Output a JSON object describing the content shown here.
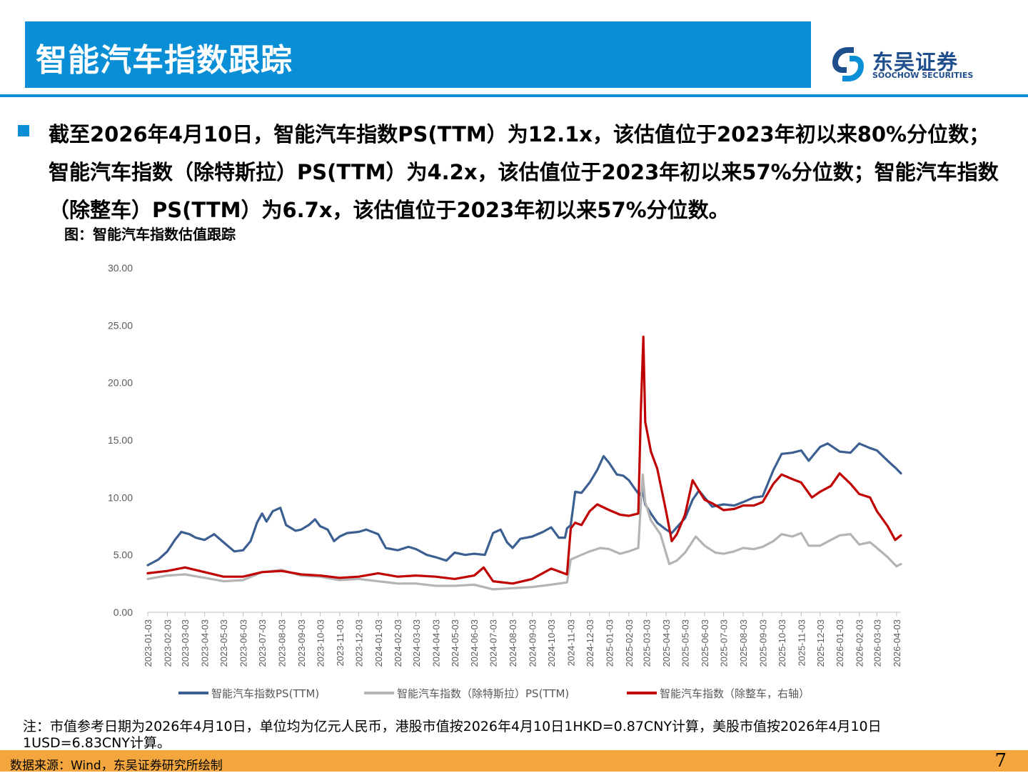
{
  "header": {
    "title": "智能汽车指数跟踪"
  },
  "logo": {
    "name": "东吴证券",
    "english": "SOOCHOW SECURITIES"
  },
  "bullet": {
    "text": "截至2026年4月10日，智能汽车指数PS(TTM）为12.1x，该估值位于2023年初以来80%分位数；智能汽车指数（除特斯拉）PS(TTM）为4.2x，该估值位于2023年初以来57%分位数；智能汽车指数（除整车）PS(TTM）为6.7x，该估值位于2023年初以来57%分位数。"
  },
  "figure": {
    "title": "图：智能汽车指数估值跟踪"
  },
  "footnote": "注：市值参考日期为2026年4月10日，单位均为亿元人民币，港股市值按2026年4月10日1HKD=0.87CNY计算，美股市值按2026年4月10日1USD=6.83CNY计算。",
  "source": "数据来源：Wind，东吴证券研究所绘制",
  "page_number": "7",
  "colors": {
    "accent": "#0a8fd6",
    "footer": "#f2a63d",
    "series1": "#3b5f91",
    "series2": "#b4b4b4",
    "series3": "#c00000"
  },
  "chart_data": {
    "type": "line",
    "title": "",
    "xlabel": "",
    "ylabel": "",
    "ylim": [
      0,
      30
    ],
    "yticks": [
      "0.00",
      "5.00",
      "10.00",
      "15.00",
      "20.00",
      "25.00",
      "30.00"
    ],
    "x_ticks": [
      "2023-01-03",
      "2023-02-03",
      "2023-03-03",
      "2023-04-03",
      "2023-05-03",
      "2023-06-03",
      "2023-07-03",
      "2023-08-03",
      "2023-09-03",
      "2023-10-03",
      "2023-11-03",
      "2023-12-03",
      "2024-01-03",
      "2024-02-03",
      "2024-03-03",
      "2024-04-03",
      "2024-05-03",
      "2024-06-03",
      "2024-07-03",
      "2024-08-03",
      "2024-09-03",
      "2024-10-03",
      "2024-11-03",
      "2024-12-03",
      "2025-01-03",
      "2025-02-03",
      "2025-03-03",
      "2025-04-03",
      "2025-05-03",
      "2025-06-03",
      "2025-07-03",
      "2025-08-03",
      "2025-09-03",
      "2025-10-03",
      "2025-11-03",
      "2025-12-03",
      "2026-01-03",
      "2026-02-03",
      "2026-03-03",
      "2026-04-03"
    ],
    "legend_position": "bottom",
    "series": [
      {
        "name": "智能汽车指数PS(TTM)",
        "color": "#3b5f91",
        "points": [
          [
            "2023-01-03",
            4.1
          ],
          [
            "2023-01-20",
            4.6
          ],
          [
            "2023-02-03",
            5.3
          ],
          [
            "2023-02-15",
            6.3
          ],
          [
            "2023-02-25",
            7.0
          ],
          [
            "2023-03-10",
            6.8
          ],
          [
            "2023-03-20",
            6.5
          ],
          [
            "2023-04-03",
            6.3
          ],
          [
            "2023-04-18",
            6.8
          ],
          [
            "2023-05-03",
            6.1
          ],
          [
            "2023-05-20",
            5.3
          ],
          [
            "2023-06-03",
            5.4
          ],
          [
            "2023-06-15",
            6.2
          ],
          [
            "2023-06-25",
            7.8
          ],
          [
            "2023-07-03",
            8.6
          ],
          [
            "2023-07-10",
            7.9
          ],
          [
            "2023-07-20",
            8.8
          ],
          [
            "2023-08-01",
            9.1
          ],
          [
            "2023-08-10",
            7.6
          ],
          [
            "2023-08-25",
            7.1
          ],
          [
            "2023-09-03",
            7.2
          ],
          [
            "2023-09-15",
            7.6
          ],
          [
            "2023-09-25",
            8.1
          ],
          [
            "2023-10-03",
            7.5
          ],
          [
            "2023-10-15",
            7.2
          ],
          [
            "2023-10-25",
            6.2
          ],
          [
            "2023-11-03",
            6.6
          ],
          [
            "2023-11-15",
            6.9
          ],
          [
            "2023-12-03",
            7.0
          ],
          [
            "2023-12-15",
            7.2
          ],
          [
            "2024-01-03",
            6.8
          ],
          [
            "2024-01-15",
            5.6
          ],
          [
            "2024-02-03",
            5.4
          ],
          [
            "2024-02-20",
            5.7
          ],
          [
            "2024-03-03",
            5.5
          ],
          [
            "2024-03-20",
            5.0
          ],
          [
            "2024-04-03",
            4.8
          ],
          [
            "2024-04-20",
            4.5
          ],
          [
            "2024-05-03",
            5.2
          ],
          [
            "2024-05-20",
            5.0
          ],
          [
            "2024-06-03",
            5.1
          ],
          [
            "2024-06-20",
            5.0
          ],
          [
            "2024-07-03",
            6.9
          ],
          [
            "2024-07-15",
            7.2
          ],
          [
            "2024-07-25",
            6.1
          ],
          [
            "2024-08-03",
            5.6
          ],
          [
            "2024-08-15",
            6.4
          ],
          [
            "2024-09-03",
            6.6
          ],
          [
            "2024-09-20",
            7.0
          ],
          [
            "2024-10-03",
            7.4
          ],
          [
            "2024-10-15",
            6.5
          ],
          [
            "2024-10-25",
            6.5
          ],
          [
            "2024-10-28",
            7.3
          ],
          [
            "2024-11-03",
            7.6
          ],
          [
            "2024-11-10",
            10.5
          ],
          [
            "2024-11-20",
            10.4
          ],
          [
            "2024-12-03",
            11.3
          ],
          [
            "2024-12-15",
            12.4
          ],
          [
            "2024-12-25",
            13.6
          ],
          [
            "2025-01-03",
            13.0
          ],
          [
            "2025-01-15",
            12.0
          ],
          [
            "2025-01-25",
            11.9
          ],
          [
            "2025-02-03",
            11.5
          ],
          [
            "2025-02-12",
            10.8
          ],
          [
            "2025-02-20",
            10.2
          ],
          [
            "2025-02-25",
            10.6
          ],
          [
            "2025-03-01",
            9.4
          ],
          [
            "2025-03-10",
            8.6
          ],
          [
            "2025-03-20",
            7.8
          ],
          [
            "2025-04-03",
            7.2
          ],
          [
            "2025-04-12",
            6.9
          ],
          [
            "2025-04-20",
            7.4
          ],
          [
            "2025-05-03",
            8.2
          ],
          [
            "2025-05-15",
            9.8
          ],
          [
            "2025-05-25",
            10.6
          ],
          [
            "2025-06-03",
            10.0
          ],
          [
            "2025-06-15",
            9.2
          ],
          [
            "2025-07-03",
            9.4
          ],
          [
            "2025-07-20",
            9.3
          ],
          [
            "2025-08-03",
            9.6
          ],
          [
            "2025-08-20",
            10.0
          ],
          [
            "2025-09-03",
            10.1
          ],
          [
            "2025-09-20",
            12.4
          ],
          [
            "2025-10-03",
            13.8
          ],
          [
            "2025-10-20",
            13.9
          ],
          [
            "2025-11-03",
            14.1
          ],
          [
            "2025-11-15",
            13.2
          ],
          [
            "2025-12-03",
            14.4
          ],
          [
            "2025-12-15",
            14.7
          ],
          [
            "2026-01-03",
            14.0
          ],
          [
            "2026-01-20",
            13.9
          ],
          [
            "2026-02-03",
            14.7
          ],
          [
            "2026-02-20",
            14.3
          ],
          [
            "2026-03-03",
            14.1
          ],
          [
            "2026-03-20",
            13.2
          ],
          [
            "2026-04-03",
            12.5
          ],
          [
            "2026-04-10",
            12.1
          ]
        ]
      },
      {
        "name": "智能汽车指数（除特斯拉）PS(TTM)",
        "color": "#b4b4b4",
        "points": [
          [
            "2023-01-03",
            2.9
          ],
          [
            "2023-02-03",
            3.2
          ],
          [
            "2023-03-03",
            3.3
          ],
          [
            "2023-04-03",
            3.0
          ],
          [
            "2023-05-03",
            2.7
          ],
          [
            "2023-06-03",
            2.8
          ],
          [
            "2023-07-03",
            3.5
          ],
          [
            "2023-08-03",
            3.7
          ],
          [
            "2023-09-03",
            3.2
          ],
          [
            "2023-10-03",
            3.1
          ],
          [
            "2023-11-03",
            2.8
          ],
          [
            "2023-12-03",
            2.9
          ],
          [
            "2024-01-03",
            2.7
          ],
          [
            "2024-02-03",
            2.5
          ],
          [
            "2024-03-03",
            2.5
          ],
          [
            "2024-04-03",
            2.3
          ],
          [
            "2024-05-03",
            2.3
          ],
          [
            "2024-06-03",
            2.4
          ],
          [
            "2024-07-03",
            2.0
          ],
          [
            "2024-08-03",
            2.1
          ],
          [
            "2024-09-03",
            2.2
          ],
          [
            "2024-10-03",
            2.4
          ],
          [
            "2024-10-28",
            2.6
          ],
          [
            "2024-11-03",
            4.6
          ],
          [
            "2024-11-20",
            5.0
          ],
          [
            "2024-12-03",
            5.3
          ],
          [
            "2024-12-20",
            5.6
          ],
          [
            "2025-01-03",
            5.5
          ],
          [
            "2025-01-20",
            5.1
          ],
          [
            "2025-02-03",
            5.3
          ],
          [
            "2025-02-18",
            5.6
          ],
          [
            "2025-02-22",
            9.5
          ],
          [
            "2025-02-25",
            12.0
          ],
          [
            "2025-03-01",
            9.6
          ],
          [
            "2025-03-10",
            8.0
          ],
          [
            "2025-03-25",
            6.8
          ],
          [
            "2025-04-08",
            4.2
          ],
          [
            "2025-04-20",
            4.5
          ],
          [
            "2025-05-03",
            5.2
          ],
          [
            "2025-05-20",
            6.6
          ],
          [
            "2025-06-03",
            5.8
          ],
          [
            "2025-06-20",
            5.2
          ],
          [
            "2025-07-03",
            5.1
          ],
          [
            "2025-07-20",
            5.3
          ],
          [
            "2025-08-03",
            5.6
          ],
          [
            "2025-08-20",
            5.5
          ],
          [
            "2025-09-03",
            5.7
          ],
          [
            "2025-09-20",
            6.2
          ],
          [
            "2025-10-03",
            6.8
          ],
          [
            "2025-10-20",
            6.6
          ],
          [
            "2025-11-03",
            6.9
          ],
          [
            "2025-11-15",
            5.8
          ],
          [
            "2025-12-03",
            5.8
          ],
          [
            "2025-12-20",
            6.3
          ],
          [
            "2026-01-03",
            6.7
          ],
          [
            "2026-01-20",
            6.8
          ],
          [
            "2026-02-03",
            5.9
          ],
          [
            "2026-02-20",
            6.1
          ],
          [
            "2026-03-03",
            5.6
          ],
          [
            "2026-03-20",
            4.8
          ],
          [
            "2026-04-03",
            4.0
          ],
          [
            "2026-04-10",
            4.2
          ]
        ]
      },
      {
        "name": "智能汽车指数（除整车，右轴）",
        "color": "#c00000",
        "points": [
          [
            "2023-01-03",
            3.4
          ],
          [
            "2023-02-03",
            3.6
          ],
          [
            "2023-03-03",
            3.9
          ],
          [
            "2023-04-03",
            3.5
          ],
          [
            "2023-05-03",
            3.1
          ],
          [
            "2023-06-03",
            3.1
          ],
          [
            "2023-07-03",
            3.5
          ],
          [
            "2023-08-03",
            3.6
          ],
          [
            "2023-09-03",
            3.3
          ],
          [
            "2023-10-03",
            3.2
          ],
          [
            "2023-11-03",
            3.0
          ],
          [
            "2023-12-03",
            3.1
          ],
          [
            "2024-01-03",
            3.4
          ],
          [
            "2024-02-03",
            3.1
          ],
          [
            "2024-03-03",
            3.2
          ],
          [
            "2024-04-03",
            3.1
          ],
          [
            "2024-05-03",
            2.9
          ],
          [
            "2024-06-03",
            3.2
          ],
          [
            "2024-06-18",
            3.9
          ],
          [
            "2024-07-03",
            2.7
          ],
          [
            "2024-08-03",
            2.5
          ],
          [
            "2024-09-03",
            2.9
          ],
          [
            "2024-10-03",
            3.8
          ],
          [
            "2024-10-28",
            3.3
          ],
          [
            "2024-11-03",
            7.3
          ],
          [
            "2024-11-10",
            7.8
          ],
          [
            "2024-11-20",
            7.6
          ],
          [
            "2024-12-03",
            8.8
          ],
          [
            "2024-12-15",
            9.4
          ],
          [
            "2025-01-03",
            8.9
          ],
          [
            "2025-01-20",
            8.5
          ],
          [
            "2025-02-03",
            8.4
          ],
          [
            "2025-02-18",
            8.6
          ],
          [
            "2025-02-22",
            17.6
          ],
          [
            "2025-02-26",
            24.0
          ],
          [
            "2025-03-01",
            16.6
          ],
          [
            "2025-03-10",
            14.0
          ],
          [
            "2025-03-20",
            12.5
          ],
          [
            "2025-04-03",
            8.8
          ],
          [
            "2025-04-12",
            6.2
          ],
          [
            "2025-04-20",
            6.8
          ],
          [
            "2025-05-03",
            8.5
          ],
          [
            "2025-05-15",
            11.5
          ],
          [
            "2025-05-25",
            10.6
          ],
          [
            "2025-06-03",
            9.8
          ],
          [
            "2025-06-15",
            9.5
          ],
          [
            "2025-07-03",
            8.9
          ],
          [
            "2025-07-20",
            9.0
          ],
          [
            "2025-08-03",
            9.3
          ],
          [
            "2025-08-20",
            9.3
          ],
          [
            "2025-09-03",
            9.6
          ],
          [
            "2025-09-20",
            11.2
          ],
          [
            "2025-10-03",
            12.0
          ],
          [
            "2025-10-20",
            11.6
          ],
          [
            "2025-11-03",
            11.3
          ],
          [
            "2025-11-20",
            10.0
          ],
          [
            "2025-12-03",
            10.5
          ],
          [
            "2025-12-20",
            11.0
          ],
          [
            "2026-01-03",
            12.1
          ],
          [
            "2026-01-20",
            11.2
          ],
          [
            "2026-02-03",
            10.3
          ],
          [
            "2026-02-20",
            10.0
          ],
          [
            "2026-03-03",
            8.8
          ],
          [
            "2026-03-20",
            7.5
          ],
          [
            "2026-04-01",
            6.3
          ],
          [
            "2026-04-10",
            6.7
          ]
        ]
      }
    ]
  }
}
